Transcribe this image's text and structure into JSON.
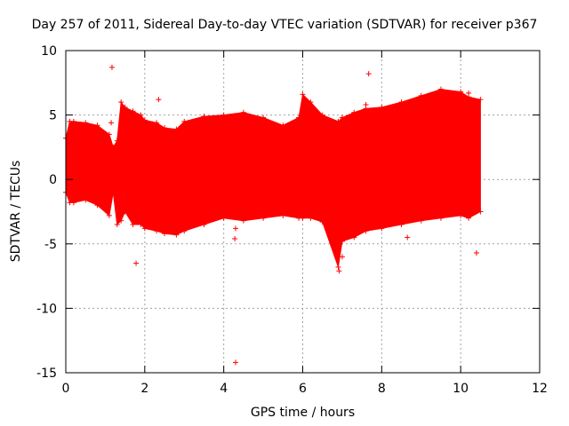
{
  "chart_data": {
    "type": "scatter",
    "title": "Day 257 of 2011, Sidereal Day-to-day VTEC variation (SDTVAR) for receiver p367",
    "xlabel": "GPS time / hours",
    "ylabel": "SDTVAR / TECUs",
    "xlim": [
      0,
      12
    ],
    "ylim": [
      -15,
      10
    ],
    "xticks": [
      0,
      2,
      4,
      6,
      8,
      10,
      12
    ],
    "yticks": [
      -15,
      -10,
      -5,
      0,
      5,
      10
    ],
    "grid": true,
    "marker": "+",
    "color": "#ff0000",
    "series": [
      {
        "name": "SDTVAR",
        "envelope_x": [
          0.0,
          0.1,
          0.2,
          0.5,
          0.8,
          1.1,
          1.2,
          1.3,
          1.4,
          1.5,
          1.7,
          1.9,
          2.0,
          2.3,
          2.5,
          2.8,
          3.0,
          3.5,
          4.0,
          4.5,
          5.0,
          5.5,
          5.9,
          6.0,
          6.2,
          6.5,
          6.9,
          7.0,
          7.3,
          7.6,
          8.0,
          8.5,
          9.0,
          9.5,
          10.0,
          10.2,
          10.5
        ],
        "envelope_upper": [
          3.2,
          4.5,
          4.5,
          4.4,
          4.2,
          3.5,
          2.5,
          3.0,
          6.0,
          5.6,
          5.3,
          5.0,
          4.6,
          4.4,
          4.0,
          3.9,
          4.5,
          4.9,
          5.0,
          5.2,
          4.8,
          4.2,
          4.8,
          6.6,
          6.0,
          5.0,
          4.5,
          4.8,
          5.2,
          5.5,
          5.6,
          6.0,
          6.5,
          7.0,
          6.8,
          6.4,
          6.2
        ],
        "envelope_lower": [
          -1.0,
          -1.8,
          -1.8,
          -1.6,
          -2.0,
          -2.8,
          -1.0,
          -3.5,
          -3.2,
          -2.5,
          -3.5,
          -3.5,
          -3.8,
          -4.0,
          -4.2,
          -4.3,
          -4.0,
          -3.5,
          -3.0,
          -3.2,
          -3.0,
          -2.8,
          -3.0,
          -3.0,
          -3.0,
          -3.3,
          -6.8,
          -4.8,
          -4.5,
          -4.0,
          -3.8,
          -3.5,
          -3.2,
          -3.0,
          -2.8,
          -3.0,
          -2.5
        ],
        "outliers": [
          {
            "x": 1.17,
            "y": 8.7
          },
          {
            "x": 1.15,
            "y": 4.4
          },
          {
            "x": 2.35,
            "y": 6.2
          },
          {
            "x": 2.2,
            "y": 4.3
          },
          {
            "x": 7.67,
            "y": 8.2
          },
          {
            "x": 7.6,
            "y": 5.8
          },
          {
            "x": 10.2,
            "y": 6.7
          },
          {
            "x": 4.3,
            "y": -14.2
          },
          {
            "x": 4.28,
            "y": -4.6
          },
          {
            "x": 1.78,
            "y": -6.5
          },
          {
            "x": 6.92,
            "y": -7.1
          },
          {
            "x": 10.4,
            "y": -5.7
          },
          {
            "x": 0.05,
            "y": 3.2
          },
          {
            "x": 4.3,
            "y": -3.8
          },
          {
            "x": 7.0,
            "y": -6.0
          },
          {
            "x": 8.65,
            "y": -4.5
          }
        ]
      }
    ]
  }
}
